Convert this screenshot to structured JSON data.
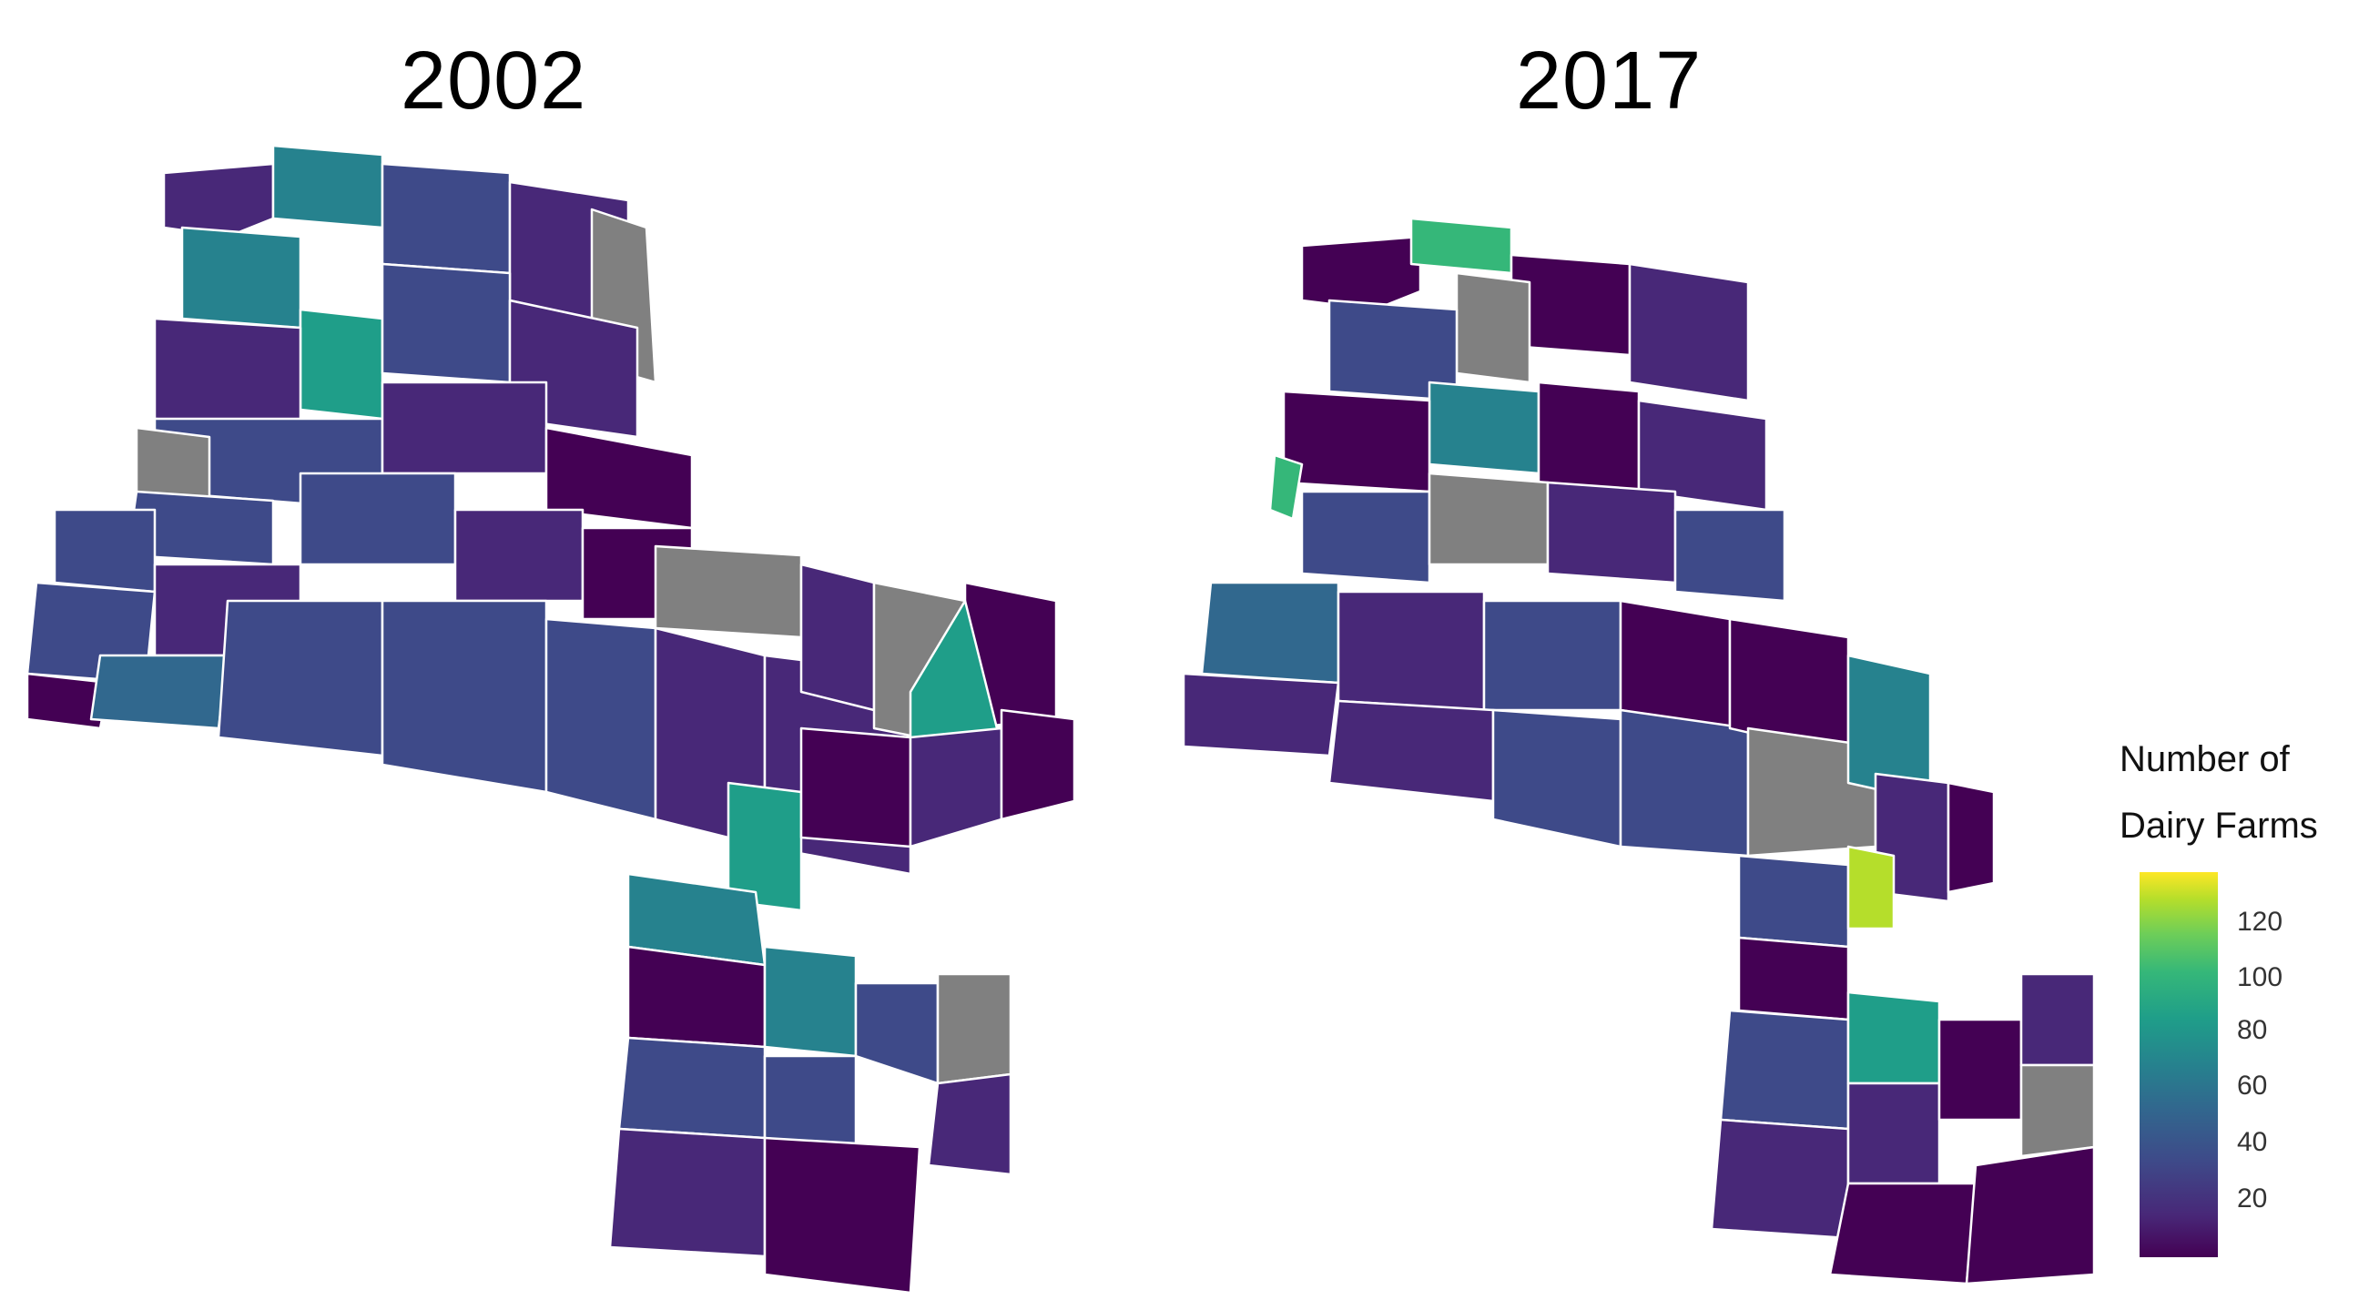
{
  "panels": [
    {
      "title": "2002"
    },
    {
      "title": "2017"
    }
  ],
  "legend": {
    "title_line1": "Number of",
    "title_line2": "Dairy Farms",
    "ticks": [
      "20",
      "40",
      "60",
      "80",
      "100",
      "120"
    ],
    "colors": [
      "#440154",
      "#3e4a89",
      "#26828e",
      "#1f9e89",
      "#6ece58",
      "#fde725"
    ],
    "missing_color": "#808080"
  }
}
